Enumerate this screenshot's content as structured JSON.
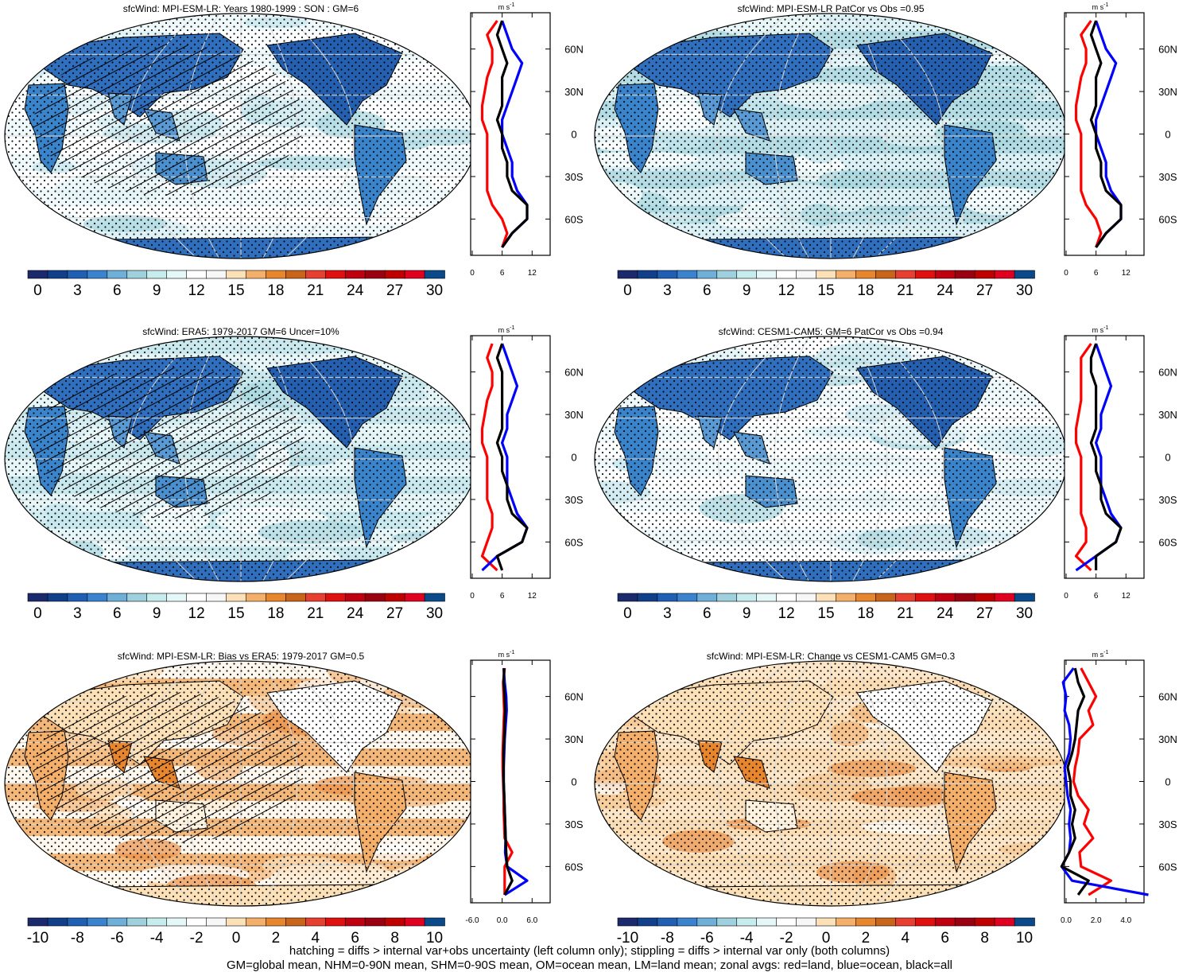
{
  "figure": {
    "footnote_line1": "hatching = diffs > internal var+obs uncertainty (left column only); stippling = diffs > internal var only (both columns)",
    "footnote_line2": "GM=global mean, NHM=0-90N mean, SHM=0-90S mean, OM=ocean mean, LM=land mean; zonal avgs: red=land, blue=ocean, black=all"
  },
  "colors": {
    "land_line": "#ff0000",
    "ocean_line": "#0000ff",
    "all_line": "#000000"
  },
  "chart_data": [
    {
      "type": "heatmap",
      "title": "sfcWind: MPI-ESM-LR: Years 1980-1999 : SON : GM=6",
      "colorbar_ticks": [
        "0",
        "3",
        "6",
        "9",
        "12",
        "15",
        "18",
        "21",
        "24",
        "27",
        "30"
      ],
      "palette": "abs",
      "hatching": true,
      "stippling": true,
      "zonal": {
        "units": "m s-1",
        "xticks": [
          "0",
          "6",
          "12"
        ],
        "yticks": [
          "60N",
          "30N",
          "0",
          "30S",
          "60S"
        ],
        "latitudes": [
          80,
          70,
          60,
          50,
          40,
          30,
          20,
          10,
          0,
          -10,
          -20,
          -30,
          -40,
          -50,
          -60,
          -70,
          -80
        ],
        "land": [
          5,
          3,
          4,
          4,
          3,
          2.5,
          2,
          2,
          3,
          3,
          3,
          3,
          3,
          4,
          6,
          7,
          6
        ],
        "ocean": [
          6,
          7,
          8,
          10,
          9,
          8,
          7,
          6,
          6,
          7,
          8,
          8,
          9,
          11,
          11,
          8,
          6
        ],
        "all": [
          6,
          5,
          6,
          7,
          6,
          6,
          6,
          5,
          6,
          6,
          7,
          7,
          8,
          11,
          11,
          8,
          6
        ]
      }
    },
    {
      "type": "heatmap",
      "title": "sfcWind: MPI-ESM-LR PatCor vs Obs =0.95",
      "colorbar_ticks": [
        "0",
        "3",
        "6",
        "9",
        "12",
        "15",
        "18",
        "21",
        "24",
        "27",
        "30"
      ],
      "palette": "abs",
      "hatching": false,
      "stippling": true,
      "zonal": {
        "units": "m s-1",
        "xticks": [
          "0",
          "6",
          "12"
        ],
        "yticks": [
          "60N",
          "30N",
          "0",
          "30S",
          "60S"
        ],
        "latitudes": [
          80,
          70,
          60,
          50,
          40,
          30,
          20,
          10,
          0,
          -10,
          -20,
          -30,
          -40,
          -50,
          -60,
          -70,
          -80
        ],
        "land": [
          5,
          3,
          4,
          4,
          3,
          2.5,
          2,
          2,
          3,
          3,
          3,
          3,
          3,
          4,
          6,
          7,
          6
        ],
        "ocean": [
          6,
          7,
          8,
          10,
          9,
          8,
          7,
          6,
          6,
          7,
          8,
          8,
          9,
          11,
          11,
          8,
          6
        ],
        "all": [
          6,
          5,
          6,
          7,
          6,
          6,
          6,
          5,
          6,
          6,
          7,
          7,
          8,
          11,
          11,
          8,
          6
        ]
      }
    },
    {
      "type": "heatmap",
      "title": "sfcWind: ERA5: 1979-2017 GM=6 Uncer=10%",
      "colorbar_ticks": [
        "0",
        "3",
        "6",
        "9",
        "12",
        "15",
        "18",
        "21",
        "24",
        "27",
        "30"
      ],
      "palette": "abs",
      "hatching": true,
      "stippling": true,
      "zonal": {
        "units": "m s-1",
        "xticks": [
          "0",
          "6",
          "12"
        ],
        "yticks": [
          "60N",
          "30N",
          "0",
          "30S",
          "60S"
        ],
        "latitudes": [
          80,
          70,
          60,
          50,
          40,
          30,
          20,
          10,
          0,
          -10,
          -20,
          -30,
          -40,
          -50,
          -60,
          -70,
          -80
        ],
        "land": [
          4,
          3,
          4,
          4,
          3,
          2.5,
          2,
          2,
          3,
          3,
          3,
          3,
          4,
          4,
          3,
          2,
          5
        ],
        "ocean": [
          6,
          7,
          8,
          9,
          8,
          7,
          7,
          6,
          7,
          7,
          7,
          8,
          9,
          11,
          10,
          5,
          2
        ],
        "all": [
          6,
          5,
          6,
          6,
          6,
          6,
          6,
          5,
          6,
          6,
          7,
          7,
          8,
          11,
          10,
          5,
          6
        ]
      }
    },
    {
      "type": "heatmap",
      "title": "sfcWind: CESM1-CAM5: GM=6 PatCor vs Obs =0.94",
      "colorbar_ticks": [
        "0",
        "3",
        "6",
        "9",
        "12",
        "15",
        "18",
        "21",
        "24",
        "27",
        "30"
      ],
      "palette": "abs",
      "hatching": false,
      "stippling": true,
      "zonal": {
        "units": "m s-1",
        "xticks": [
          "0",
          "6",
          "12"
        ],
        "yticks": [
          "60N",
          "30N",
          "0",
          "30S",
          "60S"
        ],
        "latitudes": [
          80,
          70,
          60,
          50,
          40,
          30,
          20,
          10,
          0,
          -10,
          -20,
          -30,
          -40,
          -50,
          -60,
          -70,
          -80
        ],
        "land": [
          5,
          3,
          3,
          3,
          3,
          2.5,
          2,
          2,
          3,
          3,
          3,
          3,
          3,
          4,
          4,
          2,
          5
        ],
        "ocean": [
          6,
          7,
          8,
          9,
          8,
          7,
          7,
          6,
          7,
          7,
          7,
          8,
          9,
          11,
          10,
          6,
          2
        ],
        "all": [
          6,
          5,
          5,
          6,
          6,
          6,
          6,
          5,
          6,
          6,
          7,
          7,
          8,
          11,
          10,
          6,
          6
        ]
      }
    },
    {
      "type": "heatmap",
      "title": "sfcWind: MPI-ESM-LR: Bias vs ERA5: 1979-2017  GM=0.5",
      "colorbar_ticks": [
        "-10",
        "-8",
        "-6",
        "-4",
        "-2",
        "0",
        "2",
        "4",
        "6",
        "8",
        "10"
      ],
      "palette": "diff",
      "hatching": true,
      "stippling": true,
      "zonal": {
        "units": "m s-1",
        "xticks": [
          "-6.0",
          "0.0",
          "6.0"
        ],
        "yticks": [
          "60N",
          "30N",
          "0",
          "30S",
          "60S"
        ],
        "latitudes": [
          80,
          70,
          60,
          50,
          40,
          30,
          20,
          10,
          0,
          -10,
          -20,
          -30,
          -40,
          -50,
          -60,
          -70,
          -80
        ],
        "land": [
          0.5,
          0.2,
          0.3,
          0.4,
          0.3,
          0.2,
          0.1,
          0.1,
          0.2,
          0.3,
          0.3,
          0.4,
          0.5,
          2.0,
          0.5,
          0.5,
          0.5
        ],
        "ocean": [
          0.3,
          0.5,
          0.8,
          0.9,
          0.7,
          0.5,
          0.4,
          0.3,
          0.3,
          0.4,
          0.5,
          0.6,
          0.7,
          0.6,
          1.0,
          5.0,
          0.5
        ],
        "all": [
          0.4,
          0.3,
          0.5,
          0.6,
          0.5,
          0.4,
          0.3,
          0.3,
          0.3,
          0.4,
          0.5,
          0.6,
          0.7,
          0.8,
          1.0,
          2.0,
          0.5
        ]
      }
    },
    {
      "type": "heatmap",
      "title": "sfcWind: MPI-ESM-LR: Change vs CESM1-CAM5 GM=0.3",
      "colorbar_ticks": [
        "-10",
        "-8",
        "-6",
        "-4",
        "-2",
        "0",
        "2",
        "4",
        "6",
        "8",
        "10"
      ],
      "palette": "diff",
      "hatching": false,
      "stippling": true,
      "zonal": {
        "units": "m s-1",
        "xticks": [
          "0.0",
          "2.0",
          "4.0"
        ],
        "yticks": [
          "60N",
          "30N",
          "0",
          "30S",
          "60S"
        ],
        "latitudes": [
          80,
          70,
          60,
          50,
          40,
          30,
          20,
          10,
          0,
          -10,
          -20,
          -30,
          -40,
          -50,
          -60,
          -70,
          -80
        ],
        "land": [
          1.0,
          1.5,
          2.0,
          1.5,
          1.8,
          0.9,
          0.8,
          0.6,
          0.5,
          0.8,
          1.5,
          1.2,
          1.8,
          0.9,
          1.0,
          3.0,
          1.5
        ],
        "ocean": [
          0.5,
          -0.2,
          0.0,
          -0.1,
          0.2,
          0.3,
          0.2,
          -0.1,
          0.0,
          0.1,
          0.3,
          0.2,
          0.3,
          0.2,
          -0.3,
          0.4,
          5.5
        ],
        "all": [
          0.6,
          0.8,
          1.2,
          0.8,
          0.7,
          0.6,
          0.4,
          0.1,
          0.3,
          0.3,
          0.6,
          0.4,
          0.6,
          0.2,
          -0.3,
          1.5,
          0.8
        ]
      }
    }
  ]
}
